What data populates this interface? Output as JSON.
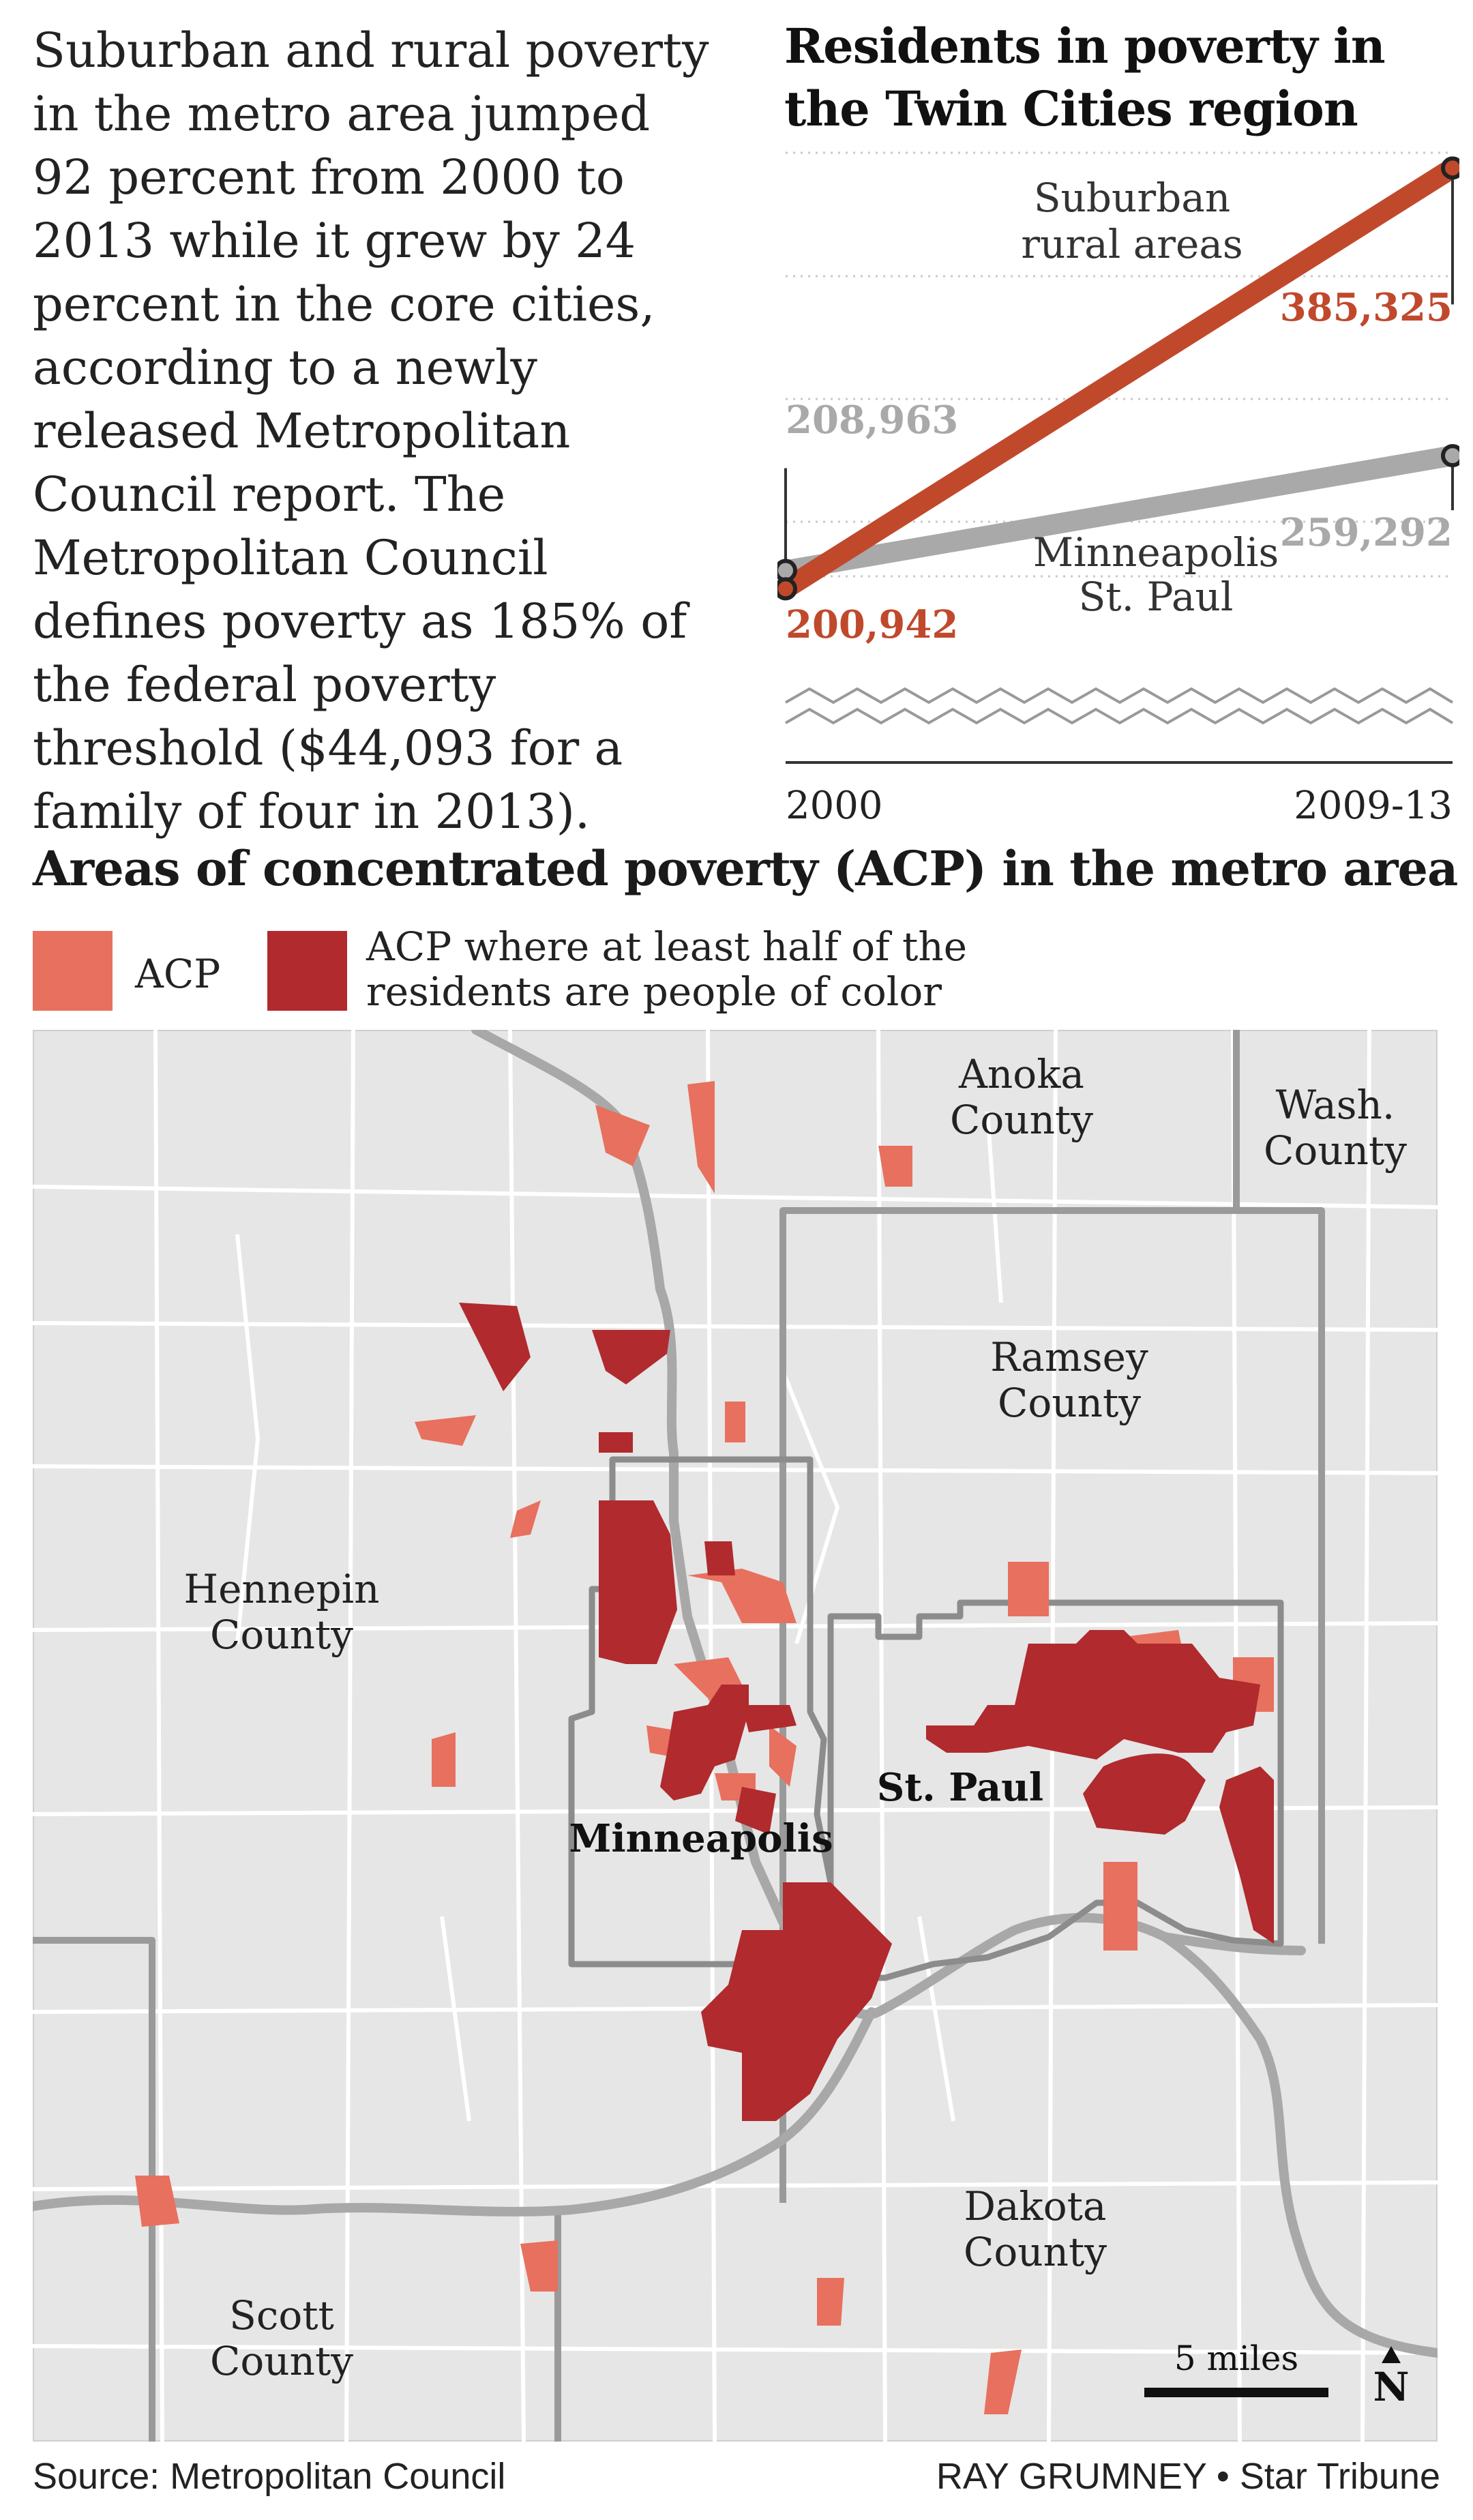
{
  "intro_text": "Suburban and rural poverty in the metro area jumped 92 percent from 2000 to 2013 while it grew by 24 percent in the core cities, according to a newly released Metropolitan Council report. The Metropolitan Council defines poverty as 185% of the federal poverty threshold ($44,093 for a family of four in 2013).",
  "chart_data": {
    "type": "line",
    "title": "Residents in poverty in the Twin Cities region",
    "x": [
      "2000",
      "2009-13"
    ],
    "series": [
      {
        "name": "Suburban rural areas",
        "values": [
          200942,
          385325
        ],
        "labels": [
          "200,942",
          "385,325"
        ],
        "color": "#c0492c"
      },
      {
        "name": "Minneapolis St. Paul",
        "values": [
          208963,
          259292
        ],
        "labels": [
          "208,963",
          "259,292"
        ],
        "color": "#a9a9a9"
      }
    ],
    "y_axis_broken": true
  },
  "map": {
    "title": "Areas of concentrated poverty (ACP) in the metro area",
    "legend": [
      {
        "label": "ACP",
        "color": "#e8705e"
      },
      {
        "label": "ACP where at least half of the residents are people of color",
        "color": "#b02a2e"
      }
    ],
    "labels": {
      "anoka": "Anoka County",
      "wash": "Wash. County",
      "ramsey": "Ramsey County",
      "hennepin": "Hennepin County",
      "minneapolis": "Minneapolis",
      "stpaul": "St. Paul",
      "dakota": "Dakota County",
      "scott": "Scott County"
    },
    "scale": "5 miles",
    "north": "N",
    "colors": {
      "land": "#e6e6e6",
      "river": "#a8a8a8",
      "boundary": "#9a9a9a",
      "city": "#8c8c8c",
      "roads": "#ffffff"
    }
  },
  "footer": {
    "source": "Source: Metropolitan Council",
    "credit": "RAY GRUMNEY • Star Tribune"
  }
}
